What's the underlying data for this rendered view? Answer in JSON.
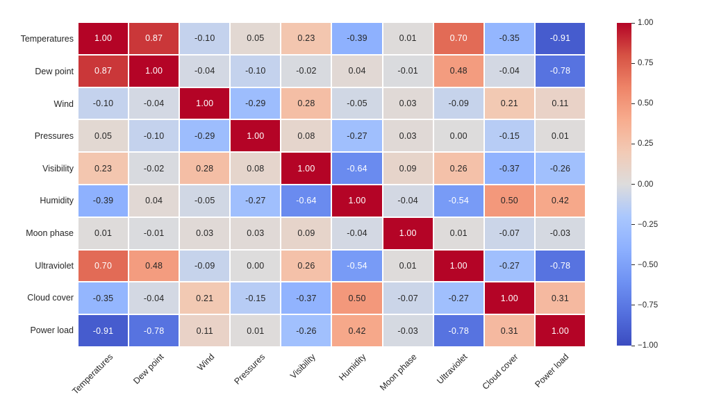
{
  "chart_data": {
    "type": "heatmap",
    "description": "Correlation matrix heatmap of weather variables vs power load, coolwarm colormap, annotated values, colorbar on right",
    "categories": [
      "Temperatures",
      "Dew point",
      "Wind",
      "Pressures",
      "Visibility",
      "Humidity",
      "Moon phase",
      "Ultraviolet",
      "Cloud cover",
      "Power load"
    ],
    "matrix": [
      [
        1.0,
        0.87,
        -0.1,
        0.05,
        0.23,
        -0.39,
        0.01,
        0.7,
        -0.35,
        -0.91
      ],
      [
        0.87,
        1.0,
        -0.04,
        -0.1,
        -0.02,
        0.04,
        -0.01,
        0.48,
        -0.04,
        -0.78
      ],
      [
        -0.1,
        -0.04,
        1.0,
        -0.29,
        0.28,
        -0.05,
        0.03,
        -0.09,
        0.21,
        0.11
      ],
      [
        0.05,
        -0.1,
        -0.29,
        1.0,
        0.08,
        -0.27,
        0.03,
        0.0,
        -0.15,
        0.01
      ],
      [
        0.23,
        -0.02,
        0.28,
        0.08,
        1.0,
        -0.64,
        0.09,
        0.26,
        -0.37,
        -0.26
      ],
      [
        -0.39,
        0.04,
        -0.05,
        -0.27,
        -0.64,
        1.0,
        -0.04,
        -0.54,
        0.5,
        0.42
      ],
      [
        0.01,
        -0.01,
        0.03,
        0.03,
        0.09,
        -0.04,
        1.0,
        0.01,
        -0.07,
        -0.03
      ],
      [
        0.7,
        0.48,
        -0.09,
        0.0,
        0.26,
        -0.54,
        0.01,
        1.0,
        -0.27,
        -0.78
      ],
      [
        -0.35,
        -0.04,
        0.21,
        -0.15,
        -0.37,
        0.5,
        -0.07,
        -0.27,
        1.0,
        0.31
      ],
      [
        -0.91,
        -0.78,
        0.11,
        0.01,
        -0.26,
        0.42,
        -0.03,
        -0.78,
        0.31,
        1.0
      ]
    ],
    "value_decimals": 2,
    "colormap": {
      "name": "coolwarm",
      "stops": [
        [
          0.0,
          "#3b4cc0"
        ],
        [
          0.1,
          "#5470de"
        ],
        [
          0.2,
          "#6f92f3"
        ],
        [
          0.3,
          "#8db0fe"
        ],
        [
          0.4,
          "#aac7fd"
        ],
        [
          0.5,
          "#dddcdc"
        ],
        [
          0.6,
          "#f2cab5"
        ],
        [
          0.7,
          "#f7ac8e"
        ],
        [
          0.8,
          "#ee8468"
        ],
        [
          0.9,
          "#d65244"
        ],
        [
          1.0,
          "#b40426"
        ]
      ]
    },
    "colorbar": {
      "min": -1,
      "max": 1,
      "position": "right",
      "tick_labels": [
        "1.00",
        "0.75",
        "0.50",
        "0.25",
        "0.00",
        "−0.25",
        "−0.50",
        "−0.75",
        "−1.00"
      ]
    },
    "grid_on": false,
    "grid_line_color": "#ffffff",
    "background": "#ffffff",
    "text_dark": "#262626",
    "text_light": "#ffffff",
    "x_tick_rotation_deg": 45
  }
}
